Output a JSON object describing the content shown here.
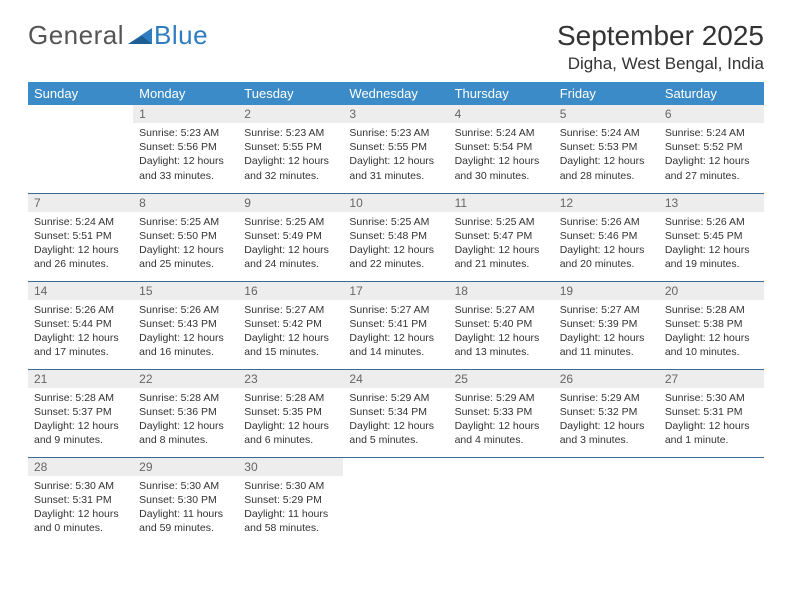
{
  "brand": {
    "word1": "General",
    "word2": "Blue"
  },
  "header": {
    "month_title": "September 2025",
    "location": "Digha, West Bengal, India"
  },
  "colors": {
    "accent": "#3b8bc8",
    "row_divider": "#3b6a94",
    "daynum_bg": "#ededed",
    "text": "#333333",
    "logo_grey": "#555555",
    "logo_blue": "#2f7dc0"
  },
  "calendar": {
    "day_headers": [
      "Sunday",
      "Monday",
      "Tuesday",
      "Wednesday",
      "Thursday",
      "Friday",
      "Saturday"
    ],
    "first_weekday_index": 1,
    "days": [
      {
        "n": 1,
        "sunrise": "5:23 AM",
        "sunset": "5:56 PM",
        "daylight": "12 hours and 33 minutes."
      },
      {
        "n": 2,
        "sunrise": "5:23 AM",
        "sunset": "5:55 PM",
        "daylight": "12 hours and 32 minutes."
      },
      {
        "n": 3,
        "sunrise": "5:23 AM",
        "sunset": "5:55 PM",
        "daylight": "12 hours and 31 minutes."
      },
      {
        "n": 4,
        "sunrise": "5:24 AM",
        "sunset": "5:54 PM",
        "daylight": "12 hours and 30 minutes."
      },
      {
        "n": 5,
        "sunrise": "5:24 AM",
        "sunset": "5:53 PM",
        "daylight": "12 hours and 28 minutes."
      },
      {
        "n": 6,
        "sunrise": "5:24 AM",
        "sunset": "5:52 PM",
        "daylight": "12 hours and 27 minutes."
      },
      {
        "n": 7,
        "sunrise": "5:24 AM",
        "sunset": "5:51 PM",
        "daylight": "12 hours and 26 minutes."
      },
      {
        "n": 8,
        "sunrise": "5:25 AM",
        "sunset": "5:50 PM",
        "daylight": "12 hours and 25 minutes."
      },
      {
        "n": 9,
        "sunrise": "5:25 AM",
        "sunset": "5:49 PM",
        "daylight": "12 hours and 24 minutes."
      },
      {
        "n": 10,
        "sunrise": "5:25 AM",
        "sunset": "5:48 PM",
        "daylight": "12 hours and 22 minutes."
      },
      {
        "n": 11,
        "sunrise": "5:25 AM",
        "sunset": "5:47 PM",
        "daylight": "12 hours and 21 minutes."
      },
      {
        "n": 12,
        "sunrise": "5:26 AM",
        "sunset": "5:46 PM",
        "daylight": "12 hours and 20 minutes."
      },
      {
        "n": 13,
        "sunrise": "5:26 AM",
        "sunset": "5:45 PM",
        "daylight": "12 hours and 19 minutes."
      },
      {
        "n": 14,
        "sunrise": "5:26 AM",
        "sunset": "5:44 PM",
        "daylight": "12 hours and 17 minutes."
      },
      {
        "n": 15,
        "sunrise": "5:26 AM",
        "sunset": "5:43 PM",
        "daylight": "12 hours and 16 minutes."
      },
      {
        "n": 16,
        "sunrise": "5:27 AM",
        "sunset": "5:42 PM",
        "daylight": "12 hours and 15 minutes."
      },
      {
        "n": 17,
        "sunrise": "5:27 AM",
        "sunset": "5:41 PM",
        "daylight": "12 hours and 14 minutes."
      },
      {
        "n": 18,
        "sunrise": "5:27 AM",
        "sunset": "5:40 PM",
        "daylight": "12 hours and 13 minutes."
      },
      {
        "n": 19,
        "sunrise": "5:27 AM",
        "sunset": "5:39 PM",
        "daylight": "12 hours and 11 minutes."
      },
      {
        "n": 20,
        "sunrise": "5:28 AM",
        "sunset": "5:38 PM",
        "daylight": "12 hours and 10 minutes."
      },
      {
        "n": 21,
        "sunrise": "5:28 AM",
        "sunset": "5:37 PM",
        "daylight": "12 hours and 9 minutes."
      },
      {
        "n": 22,
        "sunrise": "5:28 AM",
        "sunset": "5:36 PM",
        "daylight": "12 hours and 8 minutes."
      },
      {
        "n": 23,
        "sunrise": "5:28 AM",
        "sunset": "5:35 PM",
        "daylight": "12 hours and 6 minutes."
      },
      {
        "n": 24,
        "sunrise": "5:29 AM",
        "sunset": "5:34 PM",
        "daylight": "12 hours and 5 minutes."
      },
      {
        "n": 25,
        "sunrise": "5:29 AM",
        "sunset": "5:33 PM",
        "daylight": "12 hours and 4 minutes."
      },
      {
        "n": 26,
        "sunrise": "5:29 AM",
        "sunset": "5:32 PM",
        "daylight": "12 hours and 3 minutes."
      },
      {
        "n": 27,
        "sunrise": "5:30 AM",
        "sunset": "5:31 PM",
        "daylight": "12 hours and 1 minute."
      },
      {
        "n": 28,
        "sunrise": "5:30 AM",
        "sunset": "5:31 PM",
        "daylight": "12 hours and 0 minutes."
      },
      {
        "n": 29,
        "sunrise": "5:30 AM",
        "sunset": "5:30 PM",
        "daylight": "11 hours and 59 minutes."
      },
      {
        "n": 30,
        "sunrise": "5:30 AM",
        "sunset": "5:29 PM",
        "daylight": "11 hours and 58 minutes."
      }
    ]
  },
  "labels": {
    "sunrise": "Sunrise:",
    "sunset": "Sunset:",
    "daylight": "Daylight:"
  }
}
